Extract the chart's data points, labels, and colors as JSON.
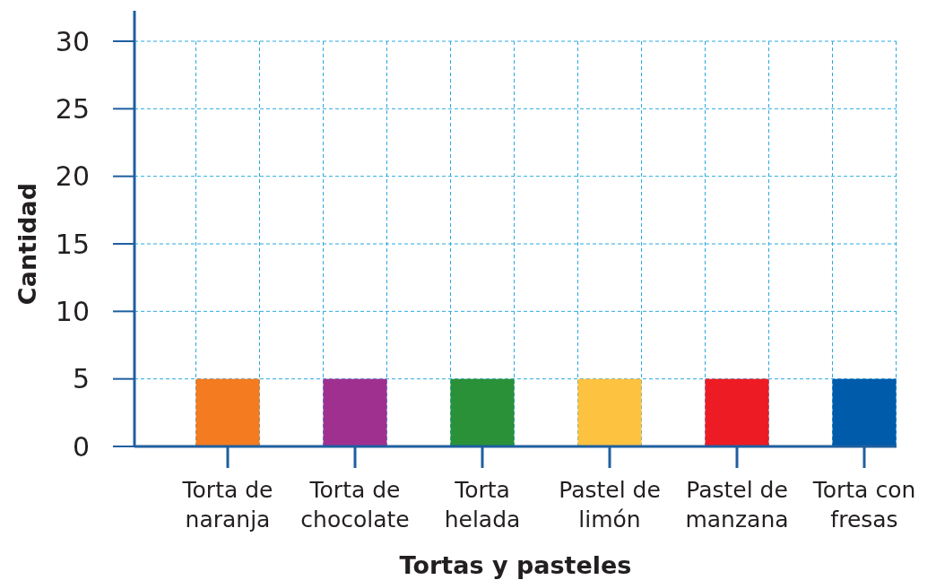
{
  "chart_data": {
    "type": "bar",
    "xlabel": "Tortas y pasteles",
    "ylabel": "Cantidad",
    "categories": [
      "Torta de naranja",
      "Torta de chocolate",
      "Torta helada",
      "Pastel de limón",
      "Pastel de manzana",
      "Torta con fresas"
    ],
    "values": [
      5,
      5,
      5,
      5,
      5,
      5
    ],
    "colors": [
      "#f47b20",
      "#a03090",
      "#2a9139",
      "#fdc240",
      "#ed1c24",
      "#005baa"
    ],
    "ylim": [
      0,
      30
    ],
    "yticks": [
      0,
      5,
      10,
      15,
      20,
      25,
      30
    ],
    "grid": true
  }
}
